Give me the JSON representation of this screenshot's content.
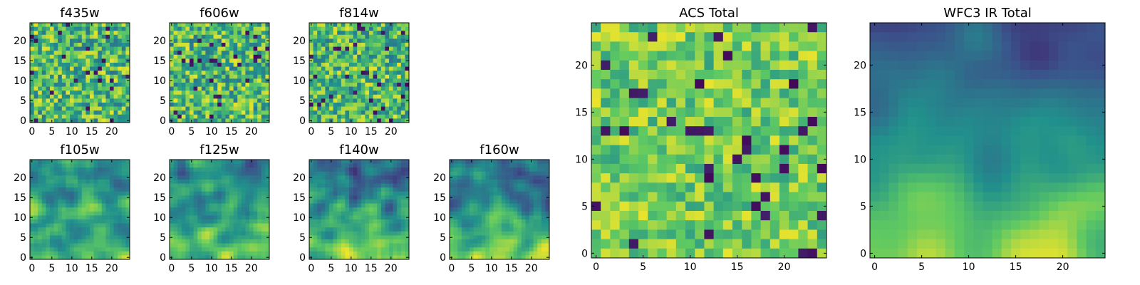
{
  "chart_data": [
    {
      "type": "heatmap",
      "title": "f435w",
      "grid_size": [
        25,
        25
      ],
      "xticks": [
        0,
        5,
        10,
        15,
        20
      ],
      "yticks": [
        0,
        5,
        10,
        15,
        20
      ],
      "colormap": "viridis",
      "texture": "uncorrelated noise, mostly green with scattered dark purple and yellow pixels"
    },
    {
      "type": "heatmap",
      "title": "f606w",
      "grid_size": [
        25,
        25
      ],
      "xticks": [
        0,
        5,
        10,
        15,
        20
      ],
      "yticks": [
        0,
        5,
        10,
        15,
        20
      ],
      "colormap": "viridis",
      "texture": "uncorrelated noise"
    },
    {
      "type": "heatmap",
      "title": "f814w",
      "grid_size": [
        25,
        25
      ],
      "xticks": [
        0,
        5,
        10,
        15,
        20
      ],
      "yticks": [
        0,
        5,
        10,
        15,
        20
      ],
      "colormap": "viridis",
      "texture": "uncorrelated noise"
    },
    {
      "type": "heatmap",
      "title": "f105w",
      "grid_size": [
        25,
        25
      ],
      "xticks": [
        0,
        5,
        10,
        15,
        20
      ],
      "yticks": [
        0,
        5,
        10,
        15,
        20
      ],
      "colormap": "viridis",
      "texture": "smooth correlated structure, brighter toward bottom"
    },
    {
      "type": "heatmap",
      "title": "f125w",
      "grid_size": [
        25,
        25
      ],
      "xticks": [
        0,
        5,
        10,
        15,
        20
      ],
      "yticks": [
        0,
        5,
        10,
        15,
        20
      ],
      "colormap": "viridis",
      "texture": "smooth correlated structure, brighter toward bottom"
    },
    {
      "type": "heatmap",
      "title": "f140w",
      "grid_size": [
        25,
        25
      ],
      "xticks": [
        0,
        5,
        10,
        15,
        20
      ],
      "yticks": [
        0,
        5,
        10,
        15,
        20
      ],
      "colormap": "viridis",
      "texture": "smooth, dark patches near top, brighter toward bottom"
    },
    {
      "type": "heatmap",
      "title": "f160w",
      "grid_size": [
        25,
        25
      ],
      "xticks": [
        0,
        5,
        10,
        15,
        20
      ],
      "yticks": [
        0,
        5,
        10,
        15,
        20
      ],
      "colormap": "viridis",
      "texture": "smooth, dark purple patches near top, brighter toward bottom"
    },
    {
      "type": "heatmap",
      "title": "ACS Total",
      "grid_size": [
        25,
        25
      ],
      "xticks": [
        0,
        5,
        10,
        15,
        20
      ],
      "yticks": [
        0,
        5,
        10,
        15,
        20
      ],
      "colormap": "viridis",
      "texture": "noise, mostly green-yellow with a few dark purple pixels"
    },
    {
      "type": "heatmap",
      "title": "WFC3 IR Total",
      "grid_size": [
        25,
        25
      ],
      "xticks": [
        0,
        5,
        10,
        15,
        20
      ],
      "yticks": [
        0,
        5,
        10,
        15,
        20
      ],
      "colormap": "viridis",
      "texture": "smooth gradient: dark blue/purple at top, green middle, yellow at bottom"
    }
  ]
}
